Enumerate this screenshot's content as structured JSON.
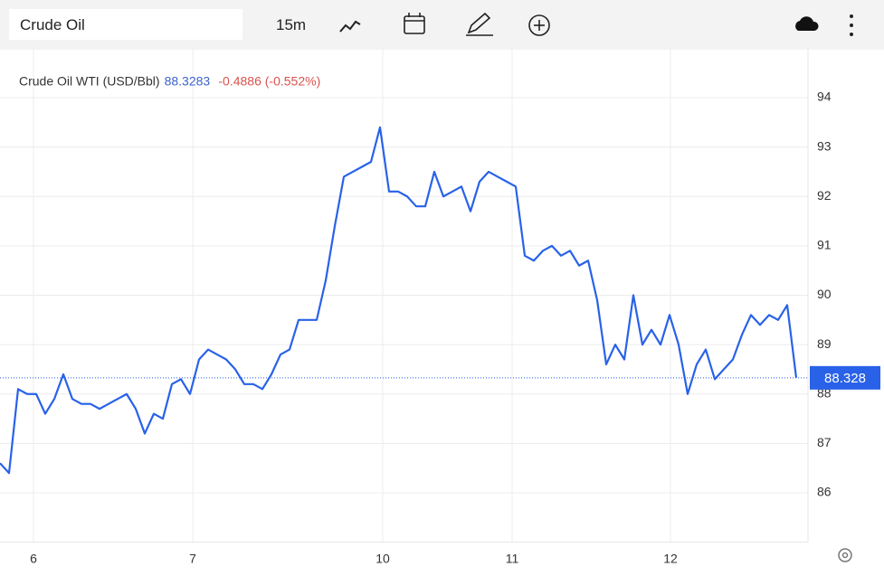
{
  "toolbar": {
    "search": "Crude Oil",
    "interval": "15m"
  },
  "chart_data": {
    "type": "line",
    "title": "Crude Oil WTI (USD/Bbl)",
    "last_price": 88.3283,
    "change": "-0.4886 (-0.552%)",
    "price_tag": 88.328,
    "x": [
      0,
      1,
      2,
      3,
      4,
      5,
      6,
      7,
      8,
      9,
      10,
      11,
      12,
      13,
      14,
      15,
      16,
      17,
      18,
      19,
      20,
      21,
      22,
      23,
      24,
      25,
      26,
      27,
      28,
      29,
      30,
      31,
      32,
      33,
      34,
      35,
      36,
      37,
      38,
      39,
      40,
      41,
      42,
      43,
      44,
      45,
      46,
      47,
      48,
      49,
      50,
      51,
      52,
      53,
      54,
      55,
      56,
      57,
      58,
      59,
      60,
      61,
      62,
      63,
      64,
      65,
      66,
      67,
      68,
      69,
      70,
      71,
      72,
      73,
      74,
      75,
      76,
      77,
      78,
      79,
      80,
      81,
      82,
      83,
      84,
      85,
      86,
      87,
      88
    ],
    "series": [
      {
        "name": "Crude Oil WTI (USD/Bbl)",
        "color": "#2962e8",
        "values": [
          86.6,
          86.4,
          88.1,
          88.0,
          88.0,
          87.6,
          87.9,
          88.4,
          87.9,
          87.8,
          87.8,
          87.7,
          87.8,
          87.9,
          88.0,
          87.7,
          87.2,
          87.6,
          87.5,
          88.2,
          88.3,
          88.0,
          88.7,
          88.9,
          88.8,
          88.7,
          88.5,
          88.2,
          88.2,
          88.1,
          88.4,
          88.8,
          88.9,
          89.5,
          89.5,
          89.5,
          90.3,
          91.4,
          92.4,
          92.5,
          92.6,
          92.7,
          93.4,
          92.1,
          92.1,
          92.0,
          91.8,
          91.8,
          92.5,
          92.0,
          92.1,
          92.2,
          91.7,
          92.3,
          92.5,
          92.4,
          92.3,
          92.2,
          90.8,
          90.7,
          90.9,
          91.0,
          90.8,
          90.9,
          90.6,
          90.7,
          89.9,
          88.6,
          89.0,
          88.7,
          90.0,
          89.0,
          89.3,
          89.0,
          89.6,
          89.0,
          88.0,
          88.6,
          88.9,
          88.3,
          88.5,
          88.7,
          89.2,
          89.6,
          89.4,
          89.6,
          89.5,
          89.8,
          88.33
        ]
      }
    ],
    "xlim": [
      0,
      89.3
    ],
    "xticks": [
      {
        "value": 3.7,
        "label": "6"
      },
      {
        "value": 21.3,
        "label": "7"
      },
      {
        "value": 42.3,
        "label": "10"
      },
      {
        "value": 56.6,
        "label": "11"
      },
      {
        "value": 74.1,
        "label": "12"
      }
    ],
    "ylim": [
      85,
      95
    ],
    "yticks": [
      86,
      87,
      88,
      89,
      90,
      91,
      92,
      93,
      94
    ],
    "grid": true
  }
}
